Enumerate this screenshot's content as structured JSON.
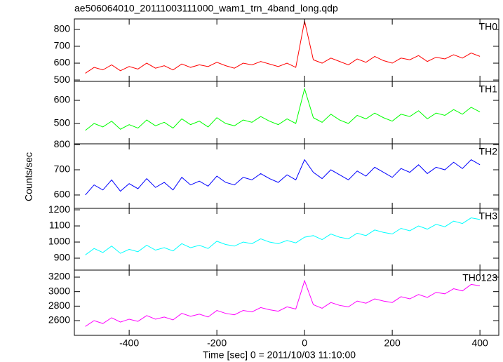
{
  "chart_data": [
    {
      "type": "line",
      "title": "ae506064010_20111003111000_wam1_trn_4band_long.qdp",
      "x": [
        -500,
        -480,
        -460,
        -440,
        -420,
        -400,
        -380,
        -360,
        -340,
        -320,
        -300,
        -280,
        -260,
        -240,
        -220,
        -200,
        -180,
        -160,
        -140,
        -120,
        -100,
        -80,
        -60,
        -40,
        -20,
        0,
        20,
        40,
        60,
        80,
        100,
        120,
        140,
        160,
        180,
        200,
        220,
        240,
        260,
        280,
        300,
        320,
        340,
        360,
        380,
        400
      ],
      "series": [
        {
          "name": "TH0",
          "color": "#ff0000",
          "values": [
            540,
            575,
            560,
            590,
            555,
            580,
            565,
            600,
            570,
            585,
            560,
            595,
            575,
            590,
            580,
            605,
            585,
            570,
            600,
            590,
            610,
            595,
            580,
            600,
            575,
            850,
            620,
            600,
            630,
            610,
            590,
            625,
            605,
            640,
            615,
            600,
            630,
            620,
            645,
            610,
            635,
            625,
            650,
            630,
            660,
            640
          ]
        }
      ],
      "xlim": [
        -525,
        443
      ],
      "xticks": [
        -400,
        -200,
        0,
        200,
        400
      ],
      "ylim": [
        492,
        862
      ],
      "yticks": [
        500,
        600,
        700,
        800
      ]
    },
    {
      "type": "line",
      "x": [
        -500,
        -480,
        -460,
        -440,
        -420,
        -400,
        -380,
        -360,
        -340,
        -320,
        -300,
        -280,
        -260,
        -240,
        -220,
        -200,
        -180,
        -160,
        -140,
        -120,
        -100,
        -80,
        -60,
        -40,
        -20,
        0,
        20,
        40,
        60,
        80,
        100,
        120,
        140,
        160,
        180,
        200,
        220,
        240,
        260,
        280,
        300,
        320,
        340,
        360,
        380,
        400
      ],
      "series": [
        {
          "name": "TH1",
          "color": "#00ff00",
          "values": [
            470,
            500,
            485,
            510,
            475,
            495,
            480,
            515,
            490,
            505,
            480,
            520,
            495,
            510,
            485,
            525,
            500,
            490,
            515,
            505,
            530,
            510,
            495,
            520,
            500,
            650,
            525,
            505,
            540,
            515,
            500,
            535,
            520,
            545,
            525,
            510,
            540,
            530,
            555,
            520,
            545,
            535,
            560,
            540,
            570,
            550
          ]
        }
      ],
      "xlim": [
        -525,
        443
      ],
      "xticks": [
        -400,
        -200,
        0,
        200,
        400
      ],
      "ylim": [
        412,
        682
      ],
      "yticks": [
        500,
        600
      ]
    },
    {
      "type": "line",
      "ylabel": "Counts/sec",
      "x": [
        -500,
        -480,
        -460,
        -440,
        -420,
        -400,
        -380,
        -360,
        -340,
        -320,
        -300,
        -280,
        -260,
        -240,
        -220,
        -200,
        -180,
        -160,
        -140,
        -120,
        -100,
        -80,
        -60,
        -40,
        -20,
        0,
        20,
        40,
        60,
        80,
        100,
        120,
        140,
        160,
        180,
        200,
        220,
        240,
        260,
        280,
        300,
        320,
        340,
        360,
        380,
        400
      ],
      "series": [
        {
          "name": "TH2",
          "color": "#0000ff",
          "values": [
            600,
            640,
            620,
            660,
            615,
            645,
            625,
            665,
            630,
            650,
            620,
            670,
            640,
            655,
            635,
            675,
            650,
            640,
            670,
            660,
            685,
            665,
            650,
            680,
            660,
            740,
            690,
            665,
            700,
            680,
            660,
            695,
            675,
            710,
            690,
            670,
            705,
            690,
            720,
            685,
            710,
            700,
            730,
            705,
            740,
            720
          ]
        }
      ],
      "xlim": [
        -525,
        443
      ],
      "xticks": [
        -400,
        -200,
        0,
        200,
        400
      ],
      "ylim": [
        547,
        803
      ],
      "yticks": [
        600,
        700,
        800
      ]
    },
    {
      "type": "line",
      "x": [
        -500,
        -480,
        -460,
        -440,
        -420,
        -400,
        -380,
        -360,
        -340,
        -320,
        -300,
        -280,
        -260,
        -240,
        -220,
        -200,
        -180,
        -160,
        -140,
        -120,
        -100,
        -80,
        -60,
        -40,
        -20,
        0,
        20,
        40,
        60,
        80,
        100,
        120,
        140,
        160,
        180,
        200,
        220,
        240,
        260,
        280,
        300,
        320,
        340,
        360,
        380,
        400
      ],
      "series": [
        {
          "name": "TH3",
          "color": "#00ffff",
          "values": [
            920,
            960,
            935,
            975,
            930,
            955,
            940,
            980,
            950,
            965,
            945,
            990,
            965,
            980,
            960,
            1005,
            985,
            975,
            1000,
            990,
            1020,
            1000,
            990,
            1010,
            995,
            1030,
            1040,
            1015,
            1050,
            1030,
            1020,
            1055,
            1040,
            1075,
            1060,
            1050,
            1085,
            1070,
            1100,
            1080,
            1110,
            1095,
            1130,
            1115,
            1150,
            1140
          ]
        }
      ],
      "xlim": [
        -525,
        443
      ],
      "xticks": [
        -400,
        -200,
        0,
        200,
        400
      ],
      "ylim": [
        826,
        1209
      ],
      "yticks": [
        900,
        1000,
        1100,
        1200
      ]
    },
    {
      "type": "line",
      "xlabel": "Time [sec] 0 = 2011/10/03 11:10:00",
      "x": [
        -500,
        -480,
        -460,
        -440,
        -420,
        -400,
        -380,
        -360,
        -340,
        -320,
        -300,
        -280,
        -260,
        -240,
        -220,
        -200,
        -180,
        -160,
        -140,
        -120,
        -100,
        -80,
        -60,
        -40,
        -20,
        0,
        20,
        40,
        60,
        80,
        100,
        120,
        140,
        160,
        180,
        200,
        220,
        240,
        260,
        280,
        300,
        320,
        340,
        360,
        380,
        400
      ],
      "series": [
        {
          "name": "TH0123",
          "color": "#ff00ff",
          "values": [
            2520,
            2600,
            2560,
            2640,
            2580,
            2620,
            2590,
            2670,
            2620,
            2650,
            2610,
            2700,
            2660,
            2690,
            2650,
            2740,
            2700,
            2680,
            2740,
            2720,
            2780,
            2750,
            2730,
            2790,
            2760,
            3150,
            2820,
            2770,
            2850,
            2810,
            2790,
            2870,
            2840,
            2900,
            2870,
            2850,
            2930,
            2900,
            2960,
            2920,
            2990,
            2970,
            3040,
            3010,
            3100,
            3080
          ]
        }
      ],
      "xlim": [
        -525,
        443
      ],
      "xticks": [
        -400,
        -200,
        0,
        200,
        400
      ],
      "ylim": [
        2397,
        3297
      ],
      "yticks": [
        2600,
        2800,
        3000,
        3200
      ]
    }
  ]
}
